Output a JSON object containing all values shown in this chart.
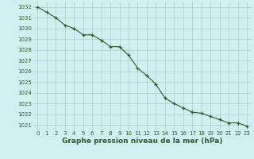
{
  "x": [
    0,
    1,
    2,
    3,
    4,
    5,
    6,
    7,
    8,
    9,
    10,
    11,
    12,
    13,
    14,
    15,
    16,
    17,
    18,
    19,
    20,
    21,
    22,
    23
  ],
  "y": [
    1032.0,
    1031.5,
    1031.0,
    1030.3,
    1030.0,
    1029.4,
    1029.4,
    1028.9,
    1028.3,
    1028.3,
    1027.5,
    1026.3,
    1025.6,
    1024.8,
    1023.5,
    1023.0,
    1022.6,
    1022.2,
    1022.1,
    1021.8,
    1021.5,
    1021.2,
    1021.2,
    1020.9
  ],
  "line_color": "#2d5a27",
  "marker_color": "#2d5a27",
  "bg_color": "#cff0f0",
  "grid_color": "#a8cccc",
  "xlabel": "Graphe pression niveau de la mer (hPa)",
  "xlabel_color": "#2d5a27",
  "tick_color": "#2d5a27",
  "ylim_min": 1020.5,
  "ylim_max": 1032.5,
  "tick_fontsize": 5.0,
  "xlabel_fontsize": 6.5
}
